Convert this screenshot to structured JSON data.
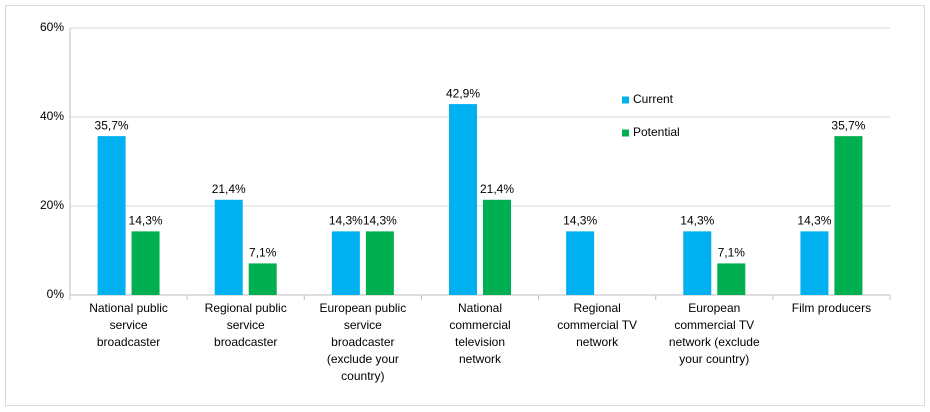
{
  "chart_data": {
    "type": "bar",
    "categories": [
      "National public service broadcaster",
      "Regional public service broadcaster",
      "European public service broadcaster (exclude your country)",
      "National commercial television network",
      "Regional commercial TV network",
      "European commercial TV network (exclude your country)",
      "Film producers"
    ],
    "series": [
      {
        "name": "Current",
        "color": "#00b0f0",
        "values": [
          35.7,
          21.4,
          14.3,
          42.9,
          14.3,
          14.3,
          14.3
        ],
        "value_labels": [
          "35,7%",
          "21,4%",
          "14,3%",
          "42,9%",
          "14,3%",
          "14,3%",
          "14,3%"
        ]
      },
      {
        "name": "Potential",
        "color": "#00b050",
        "values": [
          14.3,
          7.1,
          14.3,
          21.4,
          null,
          7.1,
          35.7
        ],
        "value_labels": [
          "14,3%",
          "7,1%",
          "14,3%",
          "21,4%",
          null,
          "7,1%",
          "35,7%"
        ]
      }
    ],
    "ylim": [
      0,
      60
    ],
    "yticks": [
      {
        "value": 0,
        "label": "0%"
      },
      {
        "value": 20,
        "label": "20%"
      },
      {
        "value": 40,
        "label": "40%"
      },
      {
        "value": 60,
        "label": "60%"
      }
    ],
    "grid": true,
    "legend": "top-right"
  }
}
